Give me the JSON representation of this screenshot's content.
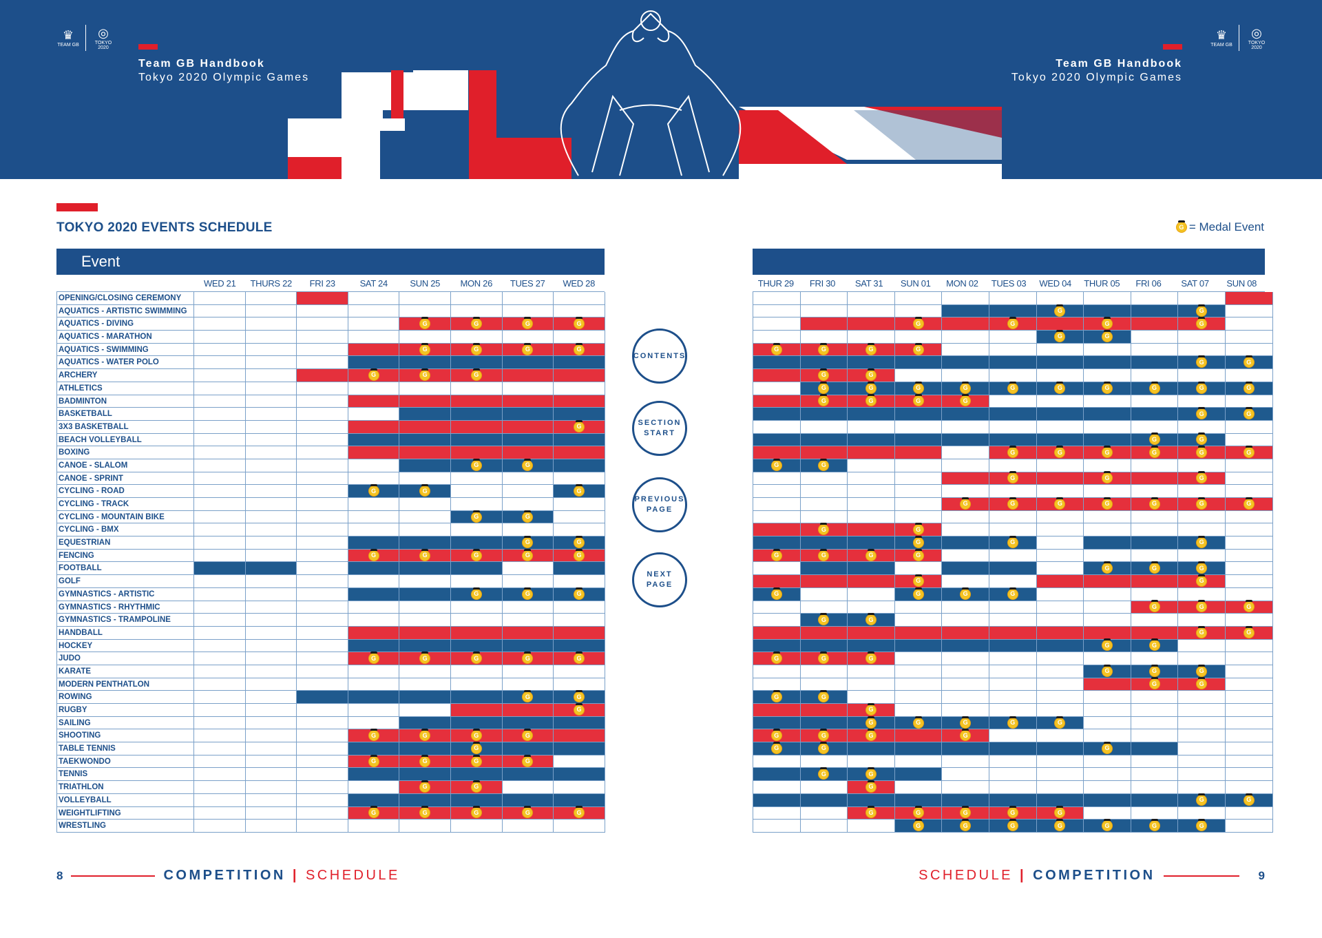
{
  "header": {
    "brand_title": "Team GB Handbook",
    "brand_sub": "Tokyo 2020 Olympic Games",
    "logo_team": "TEAM GB",
    "logo_tokyo": "TOKYO 2020"
  },
  "schedule": {
    "title": "TOKYO 2020 EVENTS SCHEDULE",
    "medal_legend": "= Medal Event",
    "medal_letter": "G",
    "event_header": "Event",
    "days_left": [
      "WED 21",
      "THURS 22",
      "FRI 23",
      "SAT 24",
      "SUN 25",
      "MON 26",
      "TUES 27",
      "WED 28"
    ],
    "days_right": [
      "THUR 29",
      "FRI 30",
      "SAT 31",
      "SUN 01",
      "MON 02",
      "TUES 03",
      "WED 04",
      "THUR 05",
      "FRI 06",
      "SAT 07",
      "SUN 08"
    ],
    "events": [
      {
        "name": "OPENING/CLOSING CEREMONY",
        "left": "--r-----",
        "right": "----------r"
      },
      {
        "name": "AQUATICS - ARTISTIC SWIMMING",
        "left": "--------",
        "right": "----bbBbbB-"
      },
      {
        "name": "AQUATICS - DIVING",
        "left": "----RRRR",
        "right": "-rrRrRrRrR-"
      },
      {
        "name": "AQUATICS - MARATHON",
        "left": "--------",
        "right": "------BB---"
      },
      {
        "name": "AQUATICS - SWIMMING",
        "left": "---rRRRR",
        "right": "RRRR-------"
      },
      {
        "name": "AQUATICS - WATER POLO",
        "left": "---bbbbb",
        "right": "bbbbbbbbbBB"
      },
      {
        "name": "ARCHERY",
        "left": "--rRRRrr",
        "right": "rRR--------"
      },
      {
        "name": "ATHLETICS",
        "left": "--------",
        "right": "-BBBBBBBBBB"
      },
      {
        "name": "BADMINTON",
        "left": "---rrrrr",
        "right": "rRRRR------"
      },
      {
        "name": "BASKETBALL",
        "left": "----bbbb",
        "right": "bbbbbbbbbBB"
      },
      {
        "name": "3X3 BASKETBALL",
        "left": "---rrrrR",
        "right": "-----------"
      },
      {
        "name": "BEACH VOLLEYBALL",
        "left": "---bbbbb",
        "right": "bbbbbbbbBB-"
      },
      {
        "name": "BOXING",
        "left": "---rrrrr",
        "right": "rrrr-RRRRRR"
      },
      {
        "name": "CANOE - SLALOM",
        "left": "----bBBb",
        "right": "BB---------"
      },
      {
        "name": "CANOE - SPRINT",
        "left": "--------",
        "right": "----rRrRrR-"
      },
      {
        "name": "CYCLING - ROAD",
        "left": "---BB--B",
        "right": "-----------"
      },
      {
        "name": "CYCLING - TRACK",
        "left": "--------",
        "right": "----RRRRRRR"
      },
      {
        "name": "CYCLING - MOUNTAIN BIKE",
        "left": "-----BB-",
        "right": "-----------"
      },
      {
        "name": "CYCLING - BMX",
        "left": "--------",
        "right": "rRrR-------"
      },
      {
        "name": "EQUESTRIAN",
        "left": "---bbbBB",
        "right": "bbbBbB-bbB-"
      },
      {
        "name": "FENCING",
        "left": "---RRRRR",
        "right": "RRRR-------"
      },
      {
        "name": "FOOTBALL",
        "left": "bb-bbb-b",
        "right": "-bb-bb-BBB-"
      },
      {
        "name": "GOLF",
        "left": "--------",
        "right": "rrrR--rrrR-"
      },
      {
        "name": "GYMNASTICS - ARTISTIC",
        "left": "---bbBBB",
        "right": "B--BBB-----"
      },
      {
        "name": "GYMNASTICS - RHYTHMIC",
        "left": "--------",
        "right": "--------RRR"
      },
      {
        "name": "GYMNASTICS - TRAMPOLINE",
        "left": "--------",
        "right": "-BB--------"
      },
      {
        "name": "HANDBALL",
        "left": "---rrrrr",
        "right": "rrrrrrrrrRR"
      },
      {
        "name": "HOCKEY",
        "left": "---bbbbb",
        "right": "bbbbbbbBB--"
      },
      {
        "name": "JUDO",
        "left": "---RRRRR",
        "right": "RRR--------"
      },
      {
        "name": "KARATE",
        "left": "--------",
        "right": "-------BBB-"
      },
      {
        "name": "MODERN PENTHATLON",
        "left": "--------",
        "right": "-------rRR-"
      },
      {
        "name": "ROWING",
        "left": "--bbbbBB",
        "right": "BB---------"
      },
      {
        "name": "RUGBY",
        "left": "-----rrR",
        "right": "rrR--------"
      },
      {
        "name": "SAILING",
        "left": "----bbbb",
        "right": "bbBBBBB----"
      },
      {
        "name": "SHOOTING",
        "left": "---RRRRr",
        "right": "RRRrR------"
      },
      {
        "name": "TABLE TENNIS",
        "left": "---bbBbb",
        "right": "BBbbbbbBb--"
      },
      {
        "name": "TAEKWONDO",
        "left": "---RRRR-",
        "right": "-----------"
      },
      {
        "name": "TENNIS",
        "left": "---bbbbb",
        "right": "bBBb-------"
      },
      {
        "name": "TRIATHLON",
        "left": "----RR--",
        "right": "--R--------"
      },
      {
        "name": "VOLLEYBALL",
        "left": "---bbbbb",
        "right": "bbbbbbbbbBB"
      },
      {
        "name": "WEIGHTLIFTING",
        "left": "---RRRRR",
        "right": "--RRRRR----"
      },
      {
        "name": "WRESTLING",
        "left": "--------",
        "right": "---BBBBBBB-"
      }
    ]
  },
  "nav": {
    "contents": "CONTENTS",
    "section_start_1": "SECTION",
    "section_start_2": "START",
    "previous_1": "PREVIOUS",
    "previous_2": "PAGE",
    "next_1": "NEXT",
    "next_2": "PAGE"
  },
  "footer": {
    "page_left": "8",
    "page_right": "9",
    "competition": "COMPETITION",
    "separator": "|",
    "schedule": "SCHEDULE"
  },
  "colors": {
    "blue": "#1d4f8a",
    "red": "#e5303c",
    "medal": "#f4c323"
  }
}
